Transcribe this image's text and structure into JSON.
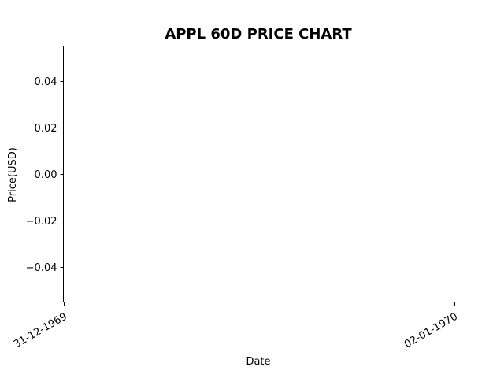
{
  "chart_data": {
    "type": "line",
    "title": "APPL 60D PRICE CHART",
    "xlabel": "Date",
    "ylabel": "Price(USD)",
    "x_type": "date",
    "xlim": [
      "1969-12-31",
      "1970-01-02"
    ],
    "x_ticks": [
      {
        "value": "1969-12-31",
        "label": "31-12-1969"
      },
      {
        "value": "1970-01-02",
        "label": "02-01-1970"
      }
    ],
    "x_minor_ticks": [
      "1969-12-31T02:00"
    ],
    "ylim": [
      -0.055,
      0.055
    ],
    "y_ticks": [
      {
        "value": 0.04,
        "label": "0.04"
      },
      {
        "value": 0.02,
        "label": "0.02"
      },
      {
        "value": 0.0,
        "label": "0.00"
      },
      {
        "value": -0.02,
        "label": "−0.02"
      },
      {
        "value": -0.04,
        "label": "−0.04"
      }
    ],
    "grid": false,
    "series": []
  }
}
